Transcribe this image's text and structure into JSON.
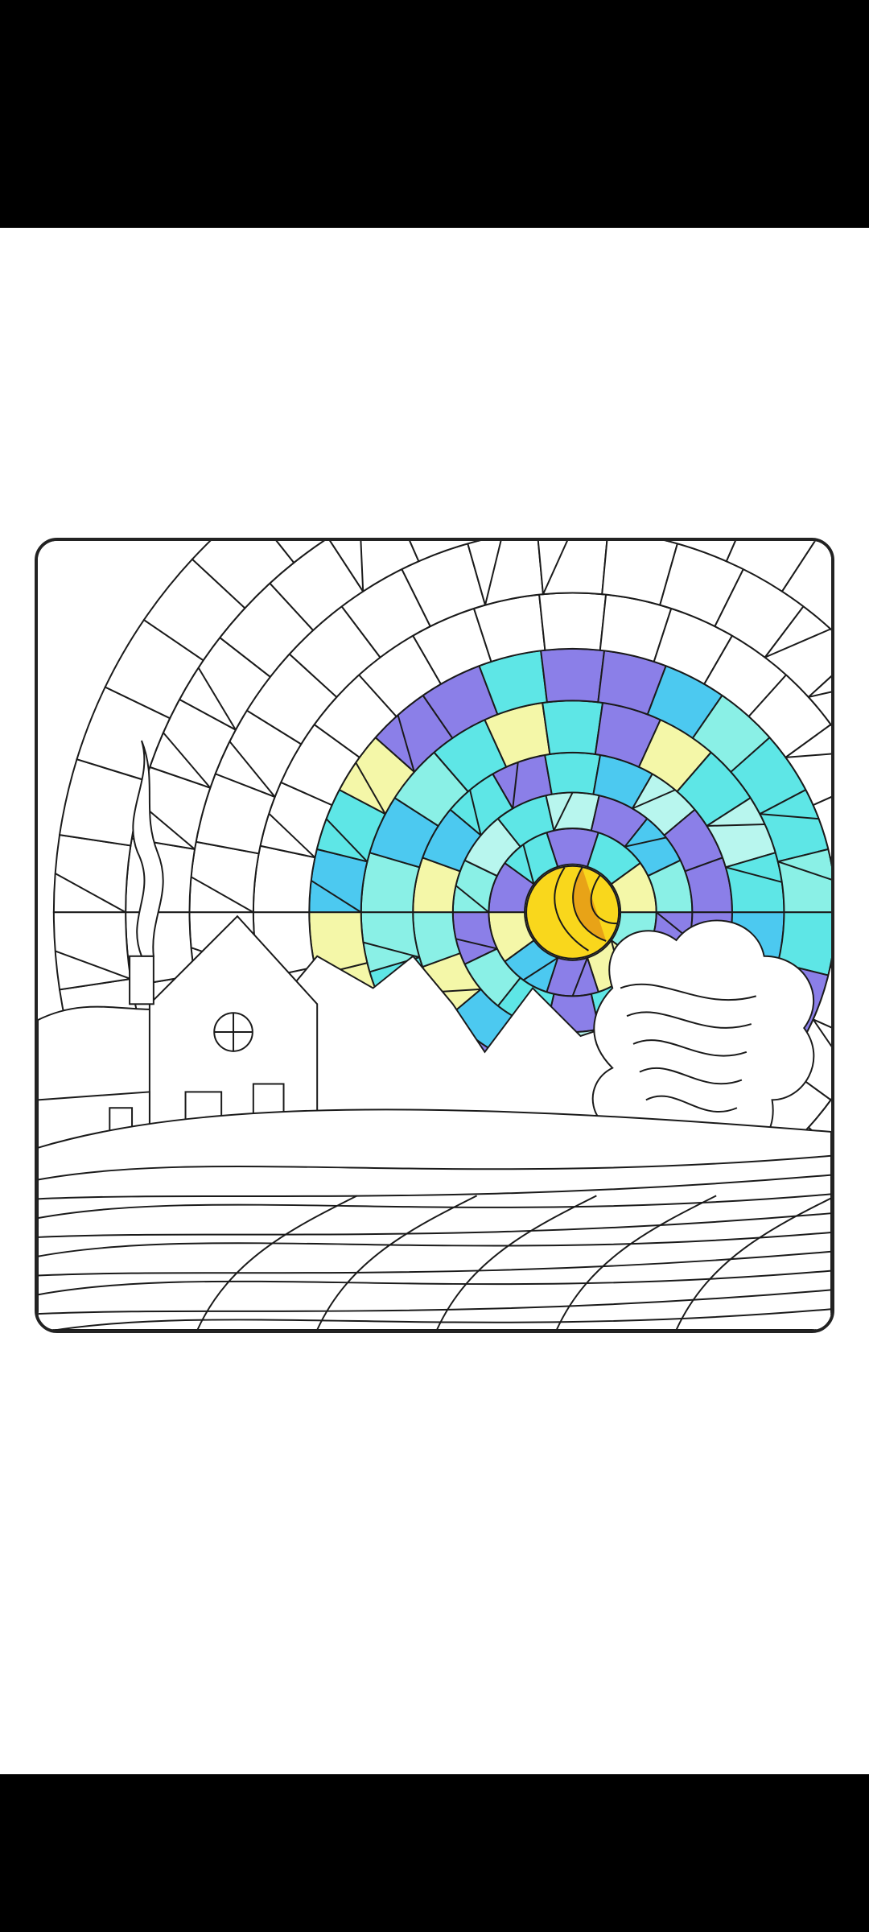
{
  "screen": {
    "name": "coloring-page",
    "artwork": "winter-sunset-stained-glass"
  },
  "palette": {
    "outline": "#1a1a1a",
    "background": "#ffffff",
    "frame_border": "#222222",
    "cyan": "#5ee6e6",
    "aqua": "#8af0e6",
    "light_aqua": "#b8f6ee",
    "lavender": "#8b7fe8",
    "pale_yellow": "#f4f7a8",
    "sky_blue": "#4cc9f0",
    "sun_yellow": "#f9d71c",
    "sun_orange": "#e8a317"
  },
  "system_bars": {
    "top_color": "#000000",
    "bottom_color": "#000000"
  }
}
